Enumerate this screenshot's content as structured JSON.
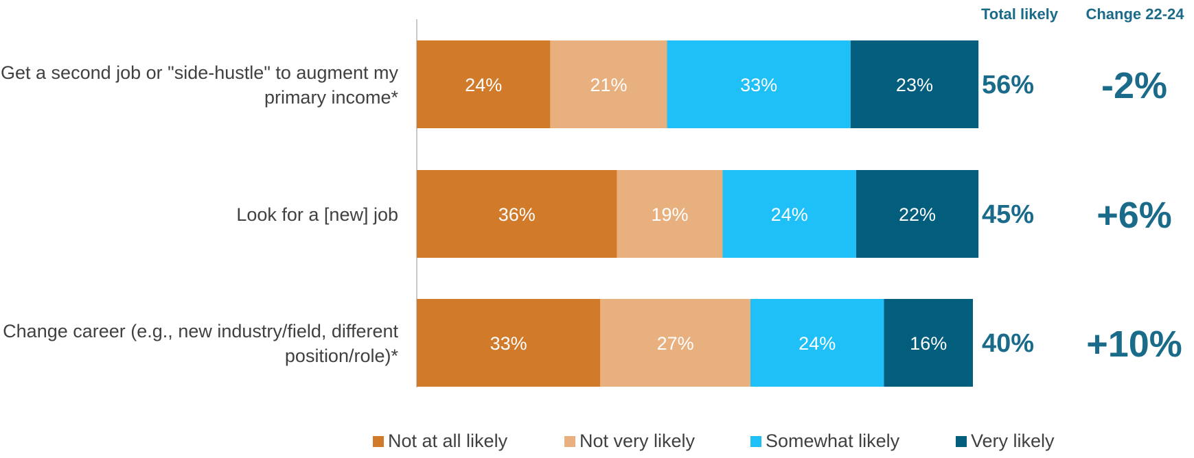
{
  "chart_data": {
    "type": "bar",
    "orientation": "horizontal",
    "stacked": true,
    "categories": [
      "Get a second job or \"side-hustle\" to augment my primary income*",
      "Look for a [new] job",
      "Change career (e.g., new industry/field, different position/role)*"
    ],
    "category_lines": [
      [
        "Get a second job or \"side-hustle\" to augment my",
        "primary income*"
      ],
      [
        "Look for a [new] job"
      ],
      [
        "Change career (e.g., new industry/field, different",
        "position/role)*"
      ]
    ],
    "series": [
      {
        "name": "Not at all likely",
        "values": [
          24,
          36,
          33
        ],
        "labels": [
          "24%",
          "36%",
          "33%"
        ],
        "color": "#d07a2a"
      },
      {
        "name": "Not very likely",
        "values": [
          21,
          19,
          27
        ],
        "labels": [
          "21%",
          "19%",
          "27%"
        ],
        "color": "#e8b07e"
      },
      {
        "name": "Somewhat likely",
        "values": [
          33,
          24,
          24
        ],
        "labels": [
          "33%",
          "24%",
          "24%"
        ],
        "color": "#1fc0f7"
      },
      {
        "name": "Very likely",
        "values": [
          23,
          22,
          16
        ],
        "labels": [
          "23%",
          "22%",
          "16%"
        ],
        "color": "#035e7d"
      }
    ],
    "xlim": [
      0,
      100
    ],
    "legend_position": "bottom",
    "grid": false,
    "extra_columns": [
      {
        "header": "Total likely",
        "values": [
          "56%",
          "45%",
          "40%"
        ]
      },
      {
        "header": "Change 22-24",
        "values": [
          "-2%",
          "+6%",
          "+10%"
        ]
      }
    ],
    "colors": {
      "header": "#1a6a8a",
      "column_values": "#1a6a8a",
      "label_text": "#404040",
      "axis_line": "#c8c8c8"
    }
  }
}
